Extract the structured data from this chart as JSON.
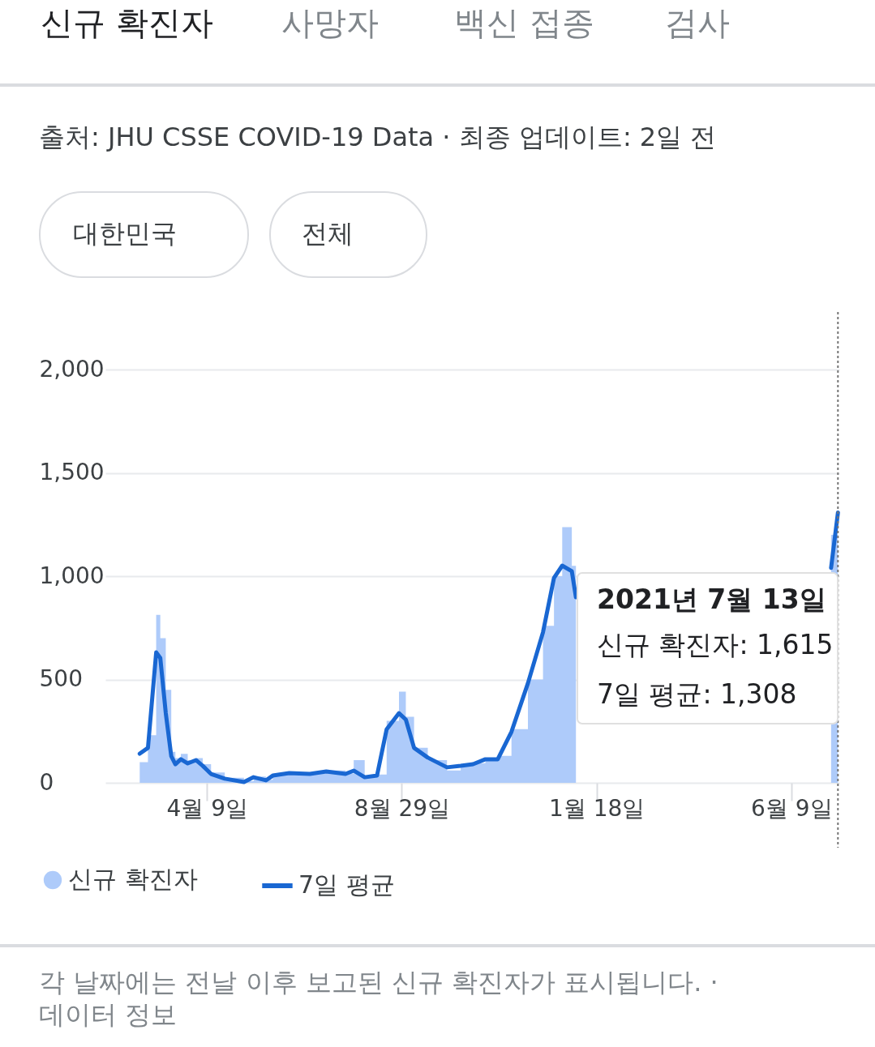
{
  "chart_data": {
    "type": "line",
    "x": [
      "2020-02-20",
      "2020-02-26",
      "2020-03-03",
      "2020-03-06",
      "2020-03-10",
      "2020-03-14",
      "2020-03-17",
      "2020-03-21",
      "2020-03-26",
      "2020-04-01",
      "2020-04-06",
      "2020-04-12",
      "2020-04-22",
      "2020-05-06",
      "2020-05-13",
      "2020-05-22",
      "2020-05-27",
      "2020-06-08",
      "2020-06-23",
      "2020-07-05",
      "2020-07-19",
      "2020-07-25",
      "2020-08-02",
      "2020-08-11",
      "2020-08-18",
      "2020-08-27",
      "2020-09-01",
      "2020-09-07",
      "2020-09-17",
      "2020-10-01",
      "2020-10-11",
      "2020-10-20",
      "2020-10-29",
      "2020-11-07",
      "2020-11-17",
      "2020-11-29",
      "2020-12-10",
      "2020-12-18",
      "2020-12-24",
      "2020-12-31",
      "2021-01-03",
      "2021-01-10",
      "2021-07-08",
      "2021-07-13"
    ],
    "series": [
      {
        "name": "신규 확진자",
        "type": "area",
        "color": "#aecbfa",
        "values": [
          100,
          230,
          813,
          700,
          450,
          150,
          120,
          140,
          110,
          120,
          90,
          50,
          25,
          8,
          30,
          15,
          40,
          50,
          45,
          60,
          45,
          110,
          30,
          40,
          300,
          441,
          320,
          170,
          110,
          60,
          90,
          95,
          120,
          130,
          260,
          500,
          760,
          1000,
          1237,
          1050,
          820,
          null,
          1200,
          1615
        ]
      },
      {
        "name": "7일 평균",
        "color": "#1967d2",
        "values": [
          141,
          169,
          631,
          604,
          337,
          129,
          90,
          114,
          94,
          110,
          82,
          43,
          20,
          4,
          27,
          12,
          35,
          47,
          43,
          55,
          43,
          59,
          27,
          35,
          259,
          337,
          306,
          169,
          122,
          75,
          82,
          90,
          114,
          114,
          247,
          482,
          729,
          992,
          1051,
          1024,
          898,
          null,
          1040,
          1308
        ]
      }
    ],
    "xlim": [
      "2020-01-26",
      "2021-07-14"
    ],
    "xticks": [
      {
        "value": "2020-04-09",
        "label": "4월 9일"
      },
      {
        "value": "2020-08-29",
        "label": "8월 29일"
      },
      {
        "value": "2021-01-18",
        "label": "1월 18일"
      },
      {
        "value": "2021-06-09",
        "label": "6월 9일"
      }
    ],
    "ylim": [
      0,
      2000
    ],
    "yticks": [
      0,
      {
        "value": 500,
        "label": "500"
      },
      {
        "value": 1000,
        "label": "1,000"
      },
      {
        "value": 1500,
        "label": "1,500"
      },
      {
        "value": 2000,
        "label": "2,000"
      }
    ],
    "grid": "y",
    "legend": "bottom",
    "ref_lines": [
      {
        "axis": "x",
        "value": "2021-07-13",
        "label": null,
        "color": "#757575",
        "line_style": "dotted"
      }
    ],
    "annotations": [
      "신규 확진자",
      "사망자",
      "백신 접종",
      "검사",
      "출처: JHU CSSE COVID-19 Data · 최종 업데이트: 2일 전",
      "대한민국",
      "전체",
      "2021년 7월 13일",
      "신규 확진자: 1,615",
      "7일 평균: 1,308",
      "각 날짜에는 전날 이후 보고된 신규 확진자가 표시됩니다.  ·",
      "데이터 정보"
    ]
  }
}
